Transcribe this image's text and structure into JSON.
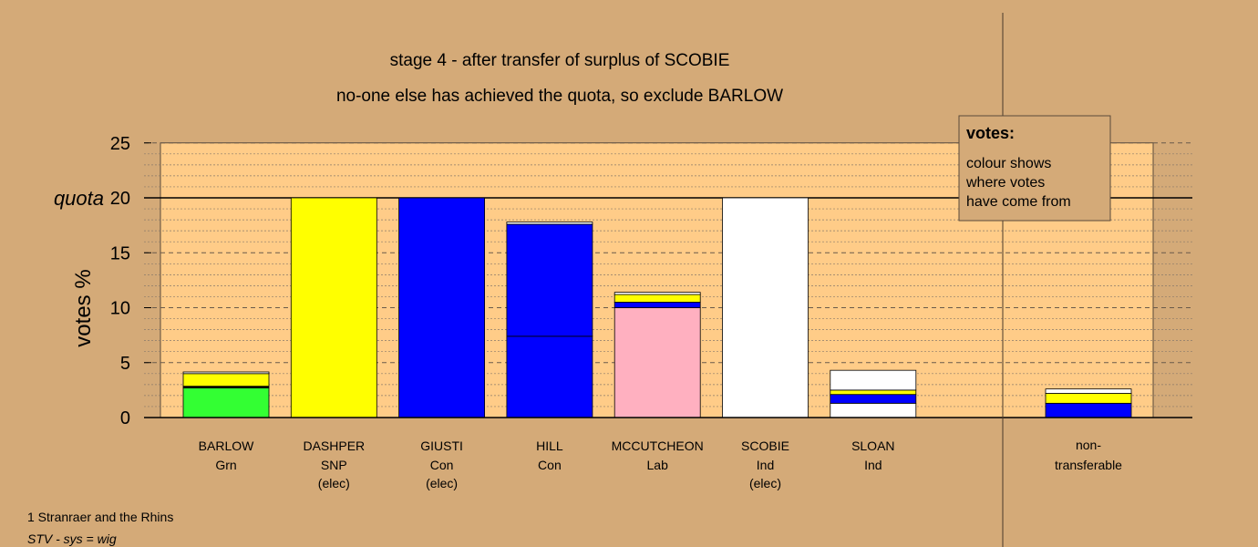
{
  "chart_data": {
    "type": "bar",
    "stacked": true,
    "title": "stage 4 - after transfer of surplus of SCOBIE",
    "subtitle": "no-one else has achieved the quota, so exclude BARLOW",
    "ylabel": "votes %",
    "ylim": [
      0,
      25
    ],
    "yticks": [
      "0",
      "5",
      "10",
      "15",
      "20",
      "25"
    ],
    "quota": {
      "label": "quota",
      "value": 20
    },
    "grid": true,
    "colors": {
      "background": "#d4aa78",
      "plot_area": "#ffcc88",
      "Grn": "#33ff33",
      "SNP": "#ffff00",
      "Con": "#0000ff",
      "Lab": "#ffb0c0",
      "Ind": "#ffffff"
    },
    "categories": [
      {
        "name": "BARLOW",
        "party": "Grn",
        "elected": "",
        "segments": [
          {
            "value": 2.7,
            "color": "#33ff33"
          },
          {
            "value": 0.15,
            "color": "#000000"
          },
          {
            "value": 1.15,
            "color": "#ffff00"
          },
          {
            "value": 0.15,
            "color": "#ffffff"
          }
        ]
      },
      {
        "name": "DASHPER",
        "party": "SNP",
        "elected": "(elec)",
        "segments": [
          {
            "value": 20.0,
            "color": "#ffff00"
          }
        ]
      },
      {
        "name": "GIUSTI",
        "party": "Con",
        "elected": "(elec)",
        "segments": [
          {
            "value": 20.0,
            "color": "#0000ff"
          }
        ]
      },
      {
        "name": "HILL",
        "party": "Con",
        "elected": "",
        "segments": [
          {
            "value": 7.4,
            "color": "#0000ff"
          },
          {
            "value": 10.2,
            "color": "#0000ff"
          },
          {
            "value": 0.2,
            "color": "#ffffff"
          }
        ]
      },
      {
        "name": "MCCUTCHEON",
        "party": "Lab",
        "elected": "",
        "segments": [
          {
            "value": 10.0,
            "color": "#ffb0c0"
          },
          {
            "value": 0.5,
            "color": "#0000ff"
          },
          {
            "value": 0.7,
            "color": "#ffff00"
          },
          {
            "value": 0.2,
            "color": "#ffffff"
          }
        ]
      },
      {
        "name": "SCOBIE",
        "party": "Ind",
        "elected": "(elec)",
        "segments": [
          {
            "value": 20.0,
            "color": "#ffffff"
          }
        ]
      },
      {
        "name": "SLOAN",
        "party": "Ind",
        "elected": "",
        "segments": [
          {
            "value": 1.3,
            "color": "#ffffff"
          },
          {
            "value": 0.8,
            "color": "#0000ff"
          },
          {
            "value": 0.4,
            "color": "#ffff00"
          },
          {
            "value": 1.8,
            "color": "#ffffff"
          }
        ]
      }
    ],
    "nontransferable": {
      "label1": "non-",
      "label2": "transferable",
      "segments": [
        {
          "value": 1.3,
          "color": "#0000ff"
        },
        {
          "value": 0.9,
          "color": "#ffff00"
        },
        {
          "value": 0.4,
          "color": "#ffffff"
        }
      ]
    },
    "legend": {
      "title": "votes:",
      "lines": [
        "colour shows",
        "where votes",
        "have come from"
      ],
      "position": "top-right"
    }
  },
  "footer": {
    "ward": "1 Stranraer and the Rhins",
    "system": "STV - sys = wig"
  }
}
